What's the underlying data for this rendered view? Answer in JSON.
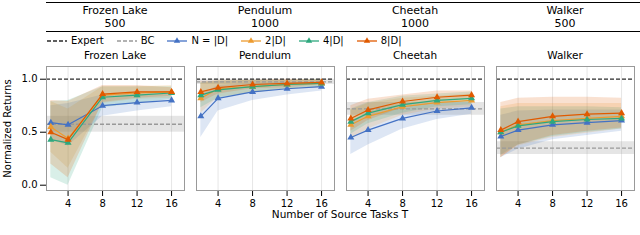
{
  "chart_data": {
    "type": "line",
    "x_label": "Number of Source Tasks T",
    "y_label": "Normalized Returns",
    "legend": "top",
    "grid": "x",
    "table": {
      "headers": [
        "Frozen Lake",
        "Pendulum",
        "Cheetah",
        "Walker"
      ],
      "values": [
        500,
        1000,
        1000,
        500
      ]
    },
    "x": [
      2,
      4,
      8,
      12,
      16
    ],
    "xlim": [
      1.5,
      17.5
    ],
    "xticks": [
      4,
      8,
      12,
      16
    ],
    "ylim": [
      -0.05,
      1.12
    ],
    "yticks": [
      {
        "value": 0.0,
        "label": "0.0"
      },
      {
        "value": 0.5,
        "label": "0.5"
      },
      {
        "value": 1.0,
        "label": "1.0"
      }
    ],
    "series": [
      {
        "name": "Expert",
        "color": "#2b2b2b",
        "type": "hline",
        "line_style": "dashed"
      },
      {
        "name": "BC",
        "color": "#999999",
        "type": "hline",
        "line_style": "dashed"
      },
      {
        "name": "N = |D|",
        "color": "#4472c4",
        "marker": "triangle",
        "line_style": "solid"
      },
      {
        "name": "2|D|",
        "color": "#ed9b2f",
        "marker": "triangle",
        "line_style": "solid"
      },
      {
        "name": "4|D|",
        "color": "#2ea87e",
        "marker": "triangle",
        "line_style": "solid"
      },
      {
        "name": "8|D|",
        "color": "#e05a00",
        "marker": "triangle",
        "line_style": "solid"
      }
    ],
    "panels": [
      {
        "title": "Frozen Lake",
        "series": [
          {
            "values": [
              1.0
            ]
          },
          {
            "values": [
              0.575
            ],
            "band_low": [
              0.5
            ],
            "band_high": [
              0.65
            ]
          },
          {
            "values": [
              0.59,
              0.57,
              0.75,
              0.78,
              0.8
            ],
            "band_low": [
              0.43,
              0.37,
              0.65,
              0.7,
              0.74
            ],
            "band_high": [
              0.75,
              0.77,
              0.85,
              0.86,
              0.86
            ]
          },
          {
            "values": [
              0.55,
              0.44,
              0.85,
              0.87,
              0.88
            ],
            "band_low": [
              0.31,
              0.16,
              0.77,
              0.81,
              0.82
            ],
            "band_high": [
              0.79,
              0.72,
              0.93,
              0.93,
              0.94
            ]
          },
          {
            "values": [
              0.43,
              0.4,
              0.83,
              0.85,
              0.87
            ],
            "band_low": [
              0.07,
              0.0,
              0.73,
              0.77,
              0.81
            ],
            "band_high": [
              0.79,
              0.8,
              0.93,
              0.93,
              0.93
            ]
          },
          {
            "values": [
              0.5,
              0.43,
              0.86,
              0.88,
              0.88
            ],
            "band_low": [
              0.2,
              0.07,
              0.78,
              0.82,
              0.84
            ],
            "band_high": [
              0.8,
              0.79,
              0.94,
              0.94,
              0.92
            ]
          }
        ]
      },
      {
        "title": "Pendulum",
        "tick_labels": "x",
        "series": [
          {
            "values": [
              1.0
            ]
          },
          {
            "values": [
              0.975
            ],
            "band_low": [
              0.951
            ],
            "band_high": [
              0.999
            ]
          },
          {
            "values": [
              0.65,
              0.82,
              0.88,
              0.91,
              0.93
            ],
            "band_low": [
              0.45,
              0.7,
              0.8,
              0.85,
              0.89
            ],
            "band_high": [
              0.85,
              0.94,
              0.96,
              0.97,
              0.97
            ]
          },
          {
            "values": [
              0.82,
              0.91,
              0.93,
              0.95,
              0.96
            ],
            "band_low": [
              0.68,
              0.83,
              0.87,
              0.91,
              0.92
            ],
            "band_high": [
              0.96,
              0.99,
              0.99,
              0.99,
              1.0
            ]
          },
          {
            "values": [
              0.85,
              0.9,
              0.93,
              0.95,
              0.96
            ],
            "band_low": [
              0.73,
              0.82,
              0.87,
              0.91,
              0.92
            ],
            "band_high": [
              0.97,
              0.98,
              0.99,
              0.99,
              1.0
            ]
          },
          {
            "values": [
              0.88,
              0.92,
              0.95,
              0.96,
              0.97
            ],
            "band_low": [
              0.78,
              0.86,
              0.91,
              0.92,
              0.95
            ],
            "band_high": [
              0.98,
              0.98,
              0.99,
              1.0,
              0.99
            ]
          }
        ]
      },
      {
        "title": "Cheetah",
        "tick_labels": "x",
        "series": [
          {
            "values": [
              1.0
            ]
          },
          {
            "values": [
              0.72
            ],
            "band_low": [
              0.66
            ],
            "band_high": [
              0.78
            ]
          },
          {
            "values": [
              0.45,
              0.52,
              0.63,
              0.7,
              0.73
            ],
            "band_low": [
              0.29,
              0.38,
              0.53,
              0.62,
              0.67
            ],
            "band_high": [
              0.61,
              0.66,
              0.73,
              0.78,
              0.79
            ]
          },
          {
            "values": [
              0.57,
              0.65,
              0.74,
              0.78,
              0.8
            ],
            "band_low": [
              0.43,
              0.53,
              0.66,
              0.72,
              0.74
            ],
            "band_high": [
              0.71,
              0.77,
              0.82,
              0.84,
              0.86
            ]
          },
          {
            "values": [
              0.6,
              0.68,
              0.76,
              0.8,
              0.82
            ],
            "band_low": [
              0.48,
              0.58,
              0.68,
              0.74,
              0.76
            ],
            "band_high": [
              0.72,
              0.78,
              0.84,
              0.86,
              0.88
            ]
          },
          {
            "values": [
              0.63,
              0.71,
              0.79,
              0.83,
              0.85
            ],
            "band_low": [
              0.51,
              0.61,
              0.73,
              0.77,
              0.81
            ],
            "band_high": [
              0.75,
              0.81,
              0.85,
              0.89,
              0.89
            ]
          }
        ]
      },
      {
        "title": "Walker",
        "tick_labels": "x",
        "series": [
          {
            "values": [
              1.0
            ]
          },
          {
            "values": [
              0.35
            ],
            "band_low": [
              0.29
            ],
            "band_high": [
              0.41
            ]
          },
          {
            "values": [
              0.46,
              0.52,
              0.57,
              0.59,
              0.61
            ],
            "band_low": [
              0.26,
              0.34,
              0.43,
              0.47,
              0.51
            ],
            "band_high": [
              0.66,
              0.7,
              0.71,
              0.71,
              0.71
            ]
          },
          {
            "values": [
              0.5,
              0.57,
              0.61,
              0.63,
              0.65
            ],
            "band_low": [
              0.26,
              0.37,
              0.45,
              0.49,
              0.53
            ],
            "band_high": [
              0.74,
              0.77,
              0.77,
              0.77,
              0.77
            ]
          },
          {
            "values": [
              0.5,
              0.56,
              0.6,
              0.62,
              0.63
            ],
            "band_low": [
              0.28,
              0.38,
              0.46,
              0.5,
              0.53
            ],
            "band_high": [
              0.72,
              0.74,
              0.74,
              0.74,
              0.73
            ]
          },
          {
            "values": [
              0.52,
              0.6,
              0.65,
              0.67,
              0.68
            ],
            "band_low": [
              0.26,
              0.38,
              0.47,
              0.51,
              0.54
            ],
            "band_high": [
              0.78,
              0.82,
              0.83,
              0.83,
              0.82
            ]
          }
        ]
      }
    ]
  }
}
